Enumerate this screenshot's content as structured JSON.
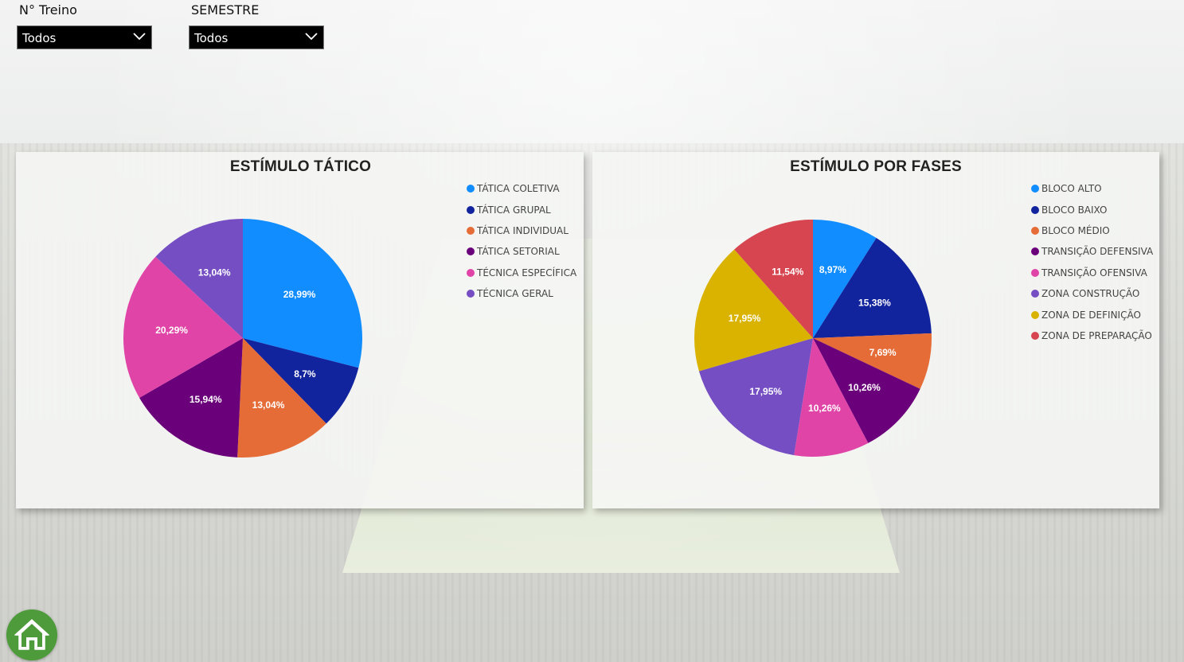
{
  "filters": {
    "treino": {
      "label": "N° Treino",
      "value": "Todos"
    },
    "semestre": {
      "label": "SEMESTRE",
      "value": "Todos"
    }
  },
  "icons": {
    "home": "home-icon",
    "dropdown": "chevron-down-icon"
  },
  "colors": {
    "home_button": "#4d9b3a",
    "slicer_bg": "#000000"
  },
  "chart_data": [
    {
      "type": "pie",
      "title": "ESTÍMULO TÁTICO",
      "legend_position": "top-right",
      "categories": [
        "TÁTICA COLETIVA",
        "TÁTICA GRUPAL",
        "TÁTICA INDIVIDUAL",
        "TÁTICA SETORIAL",
        "TÉCNICA ESPECÍFICA",
        "TÉCNICA GERAL"
      ],
      "values": [
        28.99,
        8.7,
        13.04,
        15.94,
        20.29,
        13.04
      ],
      "labels": [
        "28,99%",
        "8,7%",
        "13,04%",
        "15,94%",
        "20,29%",
        "13,04%"
      ],
      "colors": [
        "#118dff",
        "#12239e",
        "#e66c37",
        "#6b007b",
        "#e044a7",
        "#744ec2"
      ]
    },
    {
      "type": "pie",
      "title": "ESTÍMULO POR FASES",
      "legend_position": "top-right",
      "categories": [
        "BLOCO ALTO",
        "BLOCO BAIXO",
        "BLOCO MÉDIO",
        "TRANSIÇÃO DEFENSIVA",
        "TRANSIÇÃO OFENSIVA",
        "ZONA CONSTRUÇÃO",
        "ZONA DE DEFINIÇÃO",
        "ZONA DE PREPARAÇÃO"
      ],
      "values": [
        8.97,
        15.38,
        7.69,
        10.26,
        10.26,
        17.95,
        17.95,
        11.54
      ],
      "labels": [
        "8,97%",
        "15,38%",
        "7,69%",
        "10,26%",
        "10,26%",
        "17,95%",
        "17,95%",
        "11,54%"
      ],
      "colors": [
        "#118dff",
        "#12239e",
        "#e66c37",
        "#6b007b",
        "#e044a7",
        "#744ec2",
        "#d9b300",
        "#d64550"
      ]
    }
  ]
}
